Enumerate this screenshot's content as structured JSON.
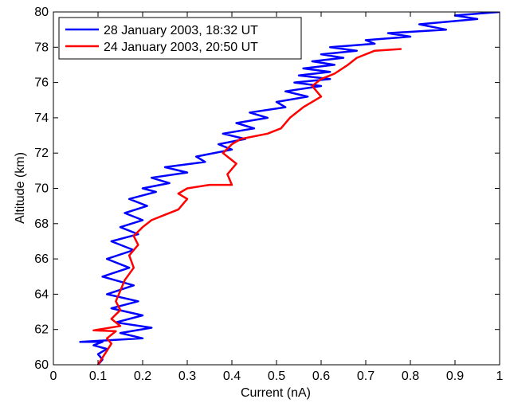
{
  "chart_data": {
    "type": "line",
    "title": "",
    "xlabel": "Current  (nA)",
    "ylabel": "Altitude  (km)",
    "xlim": [
      0,
      1
    ],
    "ylim": [
      60,
      80
    ],
    "xticks": [
      0,
      0.1,
      0.2,
      0.3,
      0.4,
      0.5,
      0.6,
      0.7,
      0.8,
      0.9,
      1
    ],
    "xtick_labels": [
      "0",
      "0.1",
      "0.2",
      "0.3",
      "0.4",
      "0.5",
      "0.6",
      "0.7",
      "0.8",
      "0.9",
      "1"
    ],
    "yticks": [
      60,
      62,
      64,
      66,
      68,
      70,
      72,
      74,
      76,
      78,
      80
    ],
    "ytick_labels": [
      "60",
      "62",
      "64",
      "66",
      "68",
      "70",
      "72",
      "74",
      "76",
      "78",
      "80"
    ],
    "grid": false,
    "legend_position": "top-left",
    "series": [
      {
        "name": "28 January 2003, 18:32 UT",
        "color": "#0000ff",
        "x": [
          0.1,
          0.11,
          0.1,
          0.12,
          0.09,
          0.11,
          0.06,
          0.2,
          0.15,
          0.22,
          0.14,
          0.2,
          0.13,
          0.19,
          0.12,
          0.18,
          0.11,
          0.17,
          0.12,
          0.18,
          0.13,
          0.19,
          0.15,
          0.2,
          0.16,
          0.21,
          0.17,
          0.23,
          0.2,
          0.26,
          0.22,
          0.3,
          0.25,
          0.34,
          0.32,
          0.4,
          0.37,
          0.43,
          0.38,
          0.45,
          0.41,
          0.48,
          0.44,
          0.52,
          0.5,
          0.57,
          0.52,
          0.6,
          0.54,
          0.62,
          0.55,
          0.62,
          0.56,
          0.63,
          0.58,
          0.65,
          0.6,
          0.68,
          0.62,
          0.72,
          0.7,
          0.8,
          0.75,
          0.88,
          0.82,
          0.95,
          0.9,
          1.0
        ],
        "y": [
          60.0,
          60.3,
          60.6,
          60.9,
          61.1,
          61.3,
          61.3,
          61.5,
          61.8,
          62.1,
          62.4,
          62.8,
          63.2,
          63.6,
          64.0,
          64.5,
          65.0,
          65.5,
          66.0,
          66.5,
          67.0,
          67.4,
          67.8,
          68.2,
          68.6,
          69.0,
          69.4,
          69.8,
          70.0,
          70.3,
          70.6,
          70.9,
          71.2,
          71.5,
          71.8,
          72.2,
          72.5,
          72.8,
          73.1,
          73.4,
          73.7,
          74.0,
          74.3,
          74.6,
          74.9,
          75.2,
          75.5,
          75.8,
          76.0,
          76.2,
          76.4,
          76.6,
          76.8,
          77.0,
          77.2,
          77.4,
          77.6,
          77.8,
          78.0,
          78.2,
          78.4,
          78.6,
          78.8,
          79.0,
          79.3,
          79.6,
          79.8,
          80.0
        ]
      },
      {
        "name": "24 January 2003, 20:50 UT",
        "color": "#ff0000",
        "x": [
          0.1,
          0.11,
          0.12,
          0.13,
          0.12,
          0.14,
          0.09,
          0.15,
          0.13,
          0.15,
          0.14,
          0.15,
          0.16,
          0.18,
          0.17,
          0.19,
          0.18,
          0.2,
          0.22,
          0.25,
          0.28,
          0.3,
          0.28,
          0.3,
          0.35,
          0.4,
          0.39,
          0.41,
          0.38,
          0.4,
          0.42,
          0.48,
          0.51,
          0.53,
          0.56,
          0.6,
          0.58,
          0.6,
          0.63,
          0.66,
          0.68,
          0.72,
          0.78
        ],
        "y": [
          60.0,
          60.4,
          60.8,
          61.2,
          61.5,
          61.9,
          61.95,
          62.2,
          62.6,
          63.1,
          63.6,
          64.2,
          64.8,
          65.5,
          66.2,
          66.8,
          67.3,
          67.8,
          68.2,
          68.5,
          68.8,
          69.4,
          69.7,
          70.0,
          70.2,
          70.2,
          70.8,
          71.4,
          72.0,
          72.5,
          72.8,
          73.1,
          73.4,
          74.0,
          74.6,
          75.2,
          75.8,
          76.2,
          76.5,
          77.0,
          77.4,
          77.8,
          77.9
        ]
      }
    ]
  }
}
